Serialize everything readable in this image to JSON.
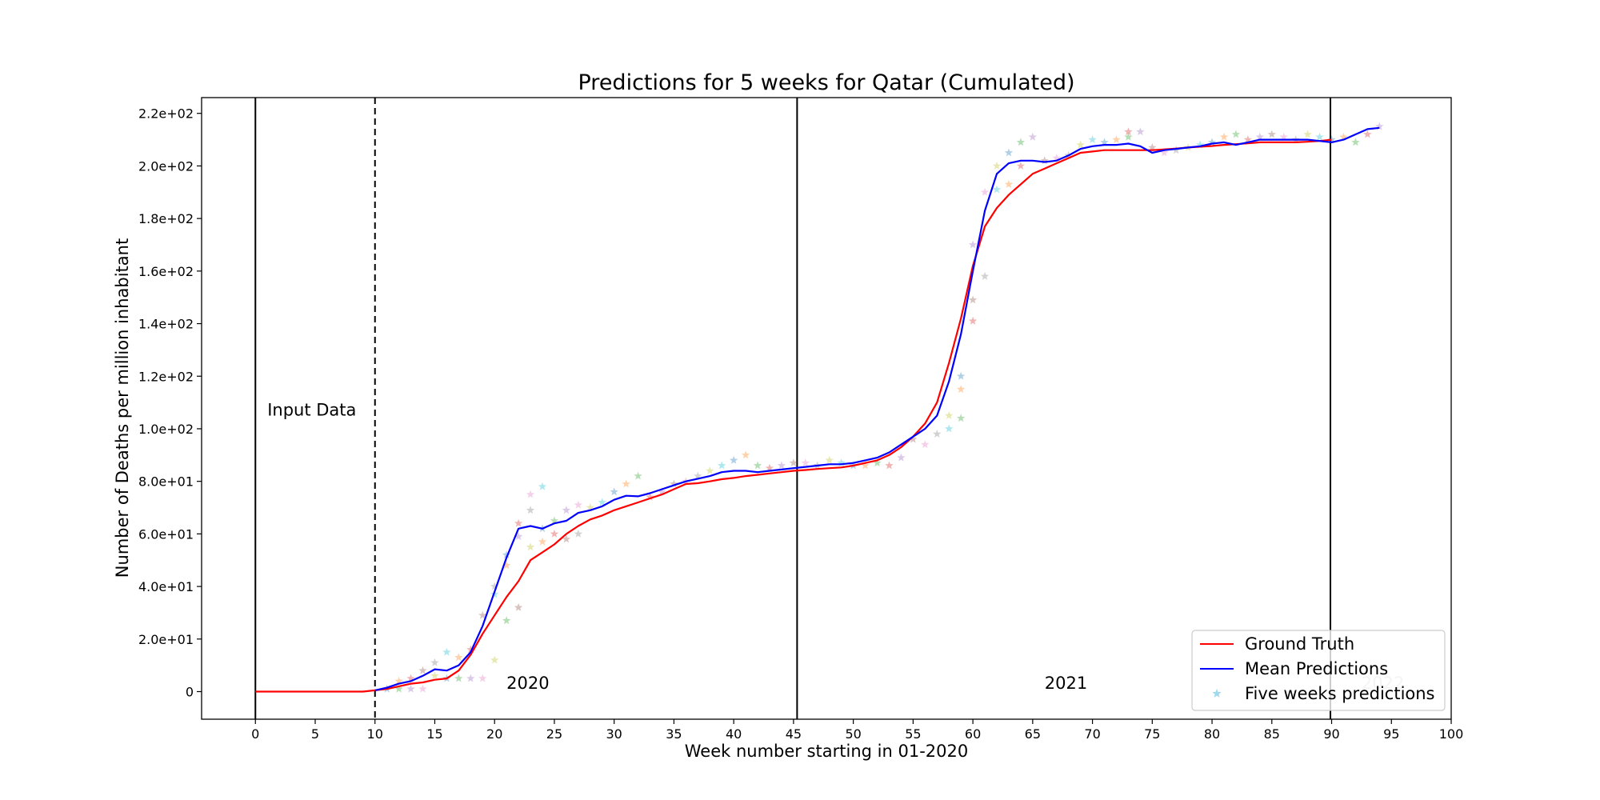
{
  "chart_data": {
    "type": "line",
    "title": "Predictions for 5 weeks for Qatar (Cumulated)",
    "xlabel": "Week number starting in 01-2020",
    "ylabel": "Number of Deaths per million inhabitant",
    "xlim": [
      -4.5,
      100
    ],
    "ylim": [
      -10.5,
      226
    ],
    "x_ticks": [
      0,
      5,
      10,
      15,
      20,
      25,
      30,
      35,
      40,
      45,
      50,
      55,
      60,
      65,
      70,
      75,
      80,
      85,
      90,
      95,
      100
    ],
    "y_ticks": [
      {
        "value": 0,
        "label": "0"
      },
      {
        "value": 20,
        "label": "2.0e+01"
      },
      {
        "value": 40,
        "label": "4.0e+01"
      },
      {
        "value": 60,
        "label": "6.0e+01"
      },
      {
        "value": 80,
        "label": "8.0e+01"
      },
      {
        "value": 100,
        "label": "1.0e+02"
      },
      {
        "value": 120,
        "label": "1.2e+02"
      },
      {
        "value": 140,
        "label": "1.4e+02"
      },
      {
        "value": 160,
        "label": "1.6e+02"
      },
      {
        "value": 180,
        "label": "1.8e+02"
      },
      {
        "value": 200,
        "label": "2.0e+02"
      },
      {
        "value": 220,
        "label": "2.2e+02"
      }
    ],
    "grid": false,
    "legend_position": "bottom-right",
    "vertical_lines": [
      {
        "x": 0,
        "style": "solid"
      },
      {
        "x": 10,
        "style": "dashed"
      },
      {
        "x": 45.3,
        "style": "solid"
      },
      {
        "x": 89.9,
        "style": "solid"
      }
    ],
    "annotations": [
      {
        "text": "Input Data",
        "x": 1,
        "y": 105,
        "color": "#000000"
      },
      {
        "text": "2020",
        "x": 21,
        "y": 1,
        "color": "#000000"
      },
      {
        "text": "2021",
        "x": 66,
        "y": 1,
        "color": "#000000"
      },
      {
        "text": "2022",
        "x": 92.5,
        "y": 1,
        "color": "#c8c8c8"
      }
    ],
    "series": [
      {
        "name": "Ground Truth",
        "kind": "line",
        "color": "#ff0000",
        "x": [
          0,
          1,
          2,
          3,
          4,
          5,
          6,
          7,
          8,
          9,
          10,
          11,
          12,
          13,
          14,
          15,
          16,
          17,
          18,
          19,
          20,
          21,
          22,
          23,
          24,
          25,
          26,
          27,
          28,
          29,
          30,
          31,
          32,
          33,
          34,
          35,
          36,
          37,
          38,
          39,
          40,
          41,
          42,
          43,
          44,
          45,
          46,
          47,
          48,
          49,
          50,
          51,
          52,
          53,
          54,
          55,
          56,
          57,
          58,
          59,
          60,
          61,
          62,
          63,
          64,
          65,
          66,
          67,
          68,
          69,
          70,
          71,
          72,
          73,
          74,
          75,
          76,
          77,
          78,
          79,
          80,
          81,
          82,
          83,
          84,
          85,
          86,
          87,
          88,
          89,
          90
        ],
        "values": [
          0,
          0,
          0,
          0,
          0,
          0,
          0,
          0,
          0,
          0,
          0.5,
          1,
          2,
          3,
          3.5,
          4.5,
          5,
          8,
          14,
          22,
          29,
          36,
          42,
          50,
          53,
          56,
          60,
          63,
          65.5,
          67,
          69,
          70.5,
          72,
          73.5,
          75,
          77,
          79,
          79.3,
          80,
          80.8,
          81.3,
          82,
          82.5,
          83,
          83.5,
          84,
          84.3,
          84.7,
          85,
          85.3,
          86,
          87,
          88,
          90,
          93,
          97,
          102,
          110,
          125,
          142,
          162,
          177,
          184,
          189,
          193,
          197,
          199,
          201,
          203,
          205,
          205.5,
          206,
          206,
          206,
          206,
          206,
          206.3,
          206.6,
          207,
          207.3,
          207.6,
          208,
          208.3,
          208.6,
          209,
          209,
          209,
          209,
          209.2,
          209.5,
          210
        ]
      },
      {
        "name": "Mean Predictions",
        "kind": "line",
        "color": "#0000ff",
        "x": [
          10,
          11,
          12,
          13,
          14,
          15,
          16,
          17,
          18,
          19,
          20,
          21,
          22,
          23,
          24,
          25,
          26,
          27,
          28,
          29,
          30,
          31,
          32,
          33,
          34,
          35,
          36,
          37,
          38,
          39,
          40,
          41,
          42,
          43,
          44,
          45,
          46,
          47,
          48,
          49,
          50,
          51,
          52,
          53,
          54,
          55,
          56,
          57,
          58,
          59,
          60,
          61,
          62,
          63,
          64,
          65,
          66,
          67,
          68,
          69,
          70,
          71,
          72,
          73,
          74,
          75,
          76,
          77,
          78,
          79,
          80,
          81,
          82,
          83,
          84,
          85,
          86,
          87,
          88,
          89,
          90,
          91,
          92,
          93,
          94
        ],
        "values": [
          0.5,
          1.5,
          3,
          4,
          6,
          8.5,
          8,
          10,
          15,
          25,
          38,
          51,
          62,
          63,
          62,
          64,
          65,
          68,
          69,
          70.5,
          73,
          74.5,
          74.3,
          75.5,
          77,
          78.5,
          80,
          81,
          82,
          83.5,
          84,
          84,
          83.5,
          84,
          84.5,
          85,
          85.5,
          86,
          86.5,
          86.5,
          87,
          88,
          89,
          91,
          94,
          97,
          100,
          105,
          118,
          136,
          160,
          183,
          197,
          201,
          202,
          202,
          201.5,
          202,
          204,
          206.5,
          207.5,
          208,
          208,
          208.5,
          207.5,
          205,
          206,
          206.5,
          207,
          207.5,
          208.5,
          209,
          208,
          209,
          210,
          210,
          210,
          210,
          210,
          209.5,
          209,
          210,
          212,
          214,
          214.5
        ]
      },
      {
        "name": "Five weeks predictions",
        "kind": "scatter",
        "marker": "star",
        "color": "#87ceeb",
        "palette": [
          "#1f77b4",
          "#ff7f0e",
          "#2ca02c",
          "#d62728",
          "#9467bd",
          "#8c564b",
          "#e377c2",
          "#7f7f7f",
          "#bcbd22",
          "#17becf"
        ],
        "x": [
          11,
          12,
          12,
          13,
          13,
          14,
          14,
          15,
          15,
          16,
          16,
          17,
          17,
          18,
          18,
          19,
          19,
          20,
          20,
          20,
          21,
          21,
          21,
          22,
          22,
          22,
          23,
          23,
          23,
          24,
          24,
          24,
          25,
          25,
          26,
          26,
          27,
          27,
          28,
          29,
          30,
          31,
          32,
          33,
          34,
          35,
          36,
          37,
          38,
          39,
          40,
          41,
          42,
          43,
          44,
          45,
          46,
          47,
          48,
          49,
          50,
          51,
          52,
          53,
          54,
          55,
          56,
          57,
          58,
          58,
          59,
          59,
          59,
          60,
          60,
          60,
          61,
          61,
          62,
          62,
          63,
          63,
          64,
          64,
          65,
          66,
          67,
          68,
          69,
          70,
          71,
          72,
          73,
          73,
          74,
          75,
          76,
          77,
          78,
          79,
          80,
          81,
          82,
          83,
          84,
          85,
          86,
          87,
          88,
          89,
          90,
          91,
          92,
          93,
          94
        ],
        "values": [
          1,
          4,
          1,
          5,
          1,
          8,
          1,
          11,
          6,
          15,
          5,
          13,
          5,
          16,
          5,
          29,
          5,
          40,
          12,
          37,
          52,
          48,
          27,
          64,
          59,
          32,
          75,
          69,
          55,
          78,
          62,
          57,
          65,
          60,
          69,
          58,
          71,
          60,
          70,
          72,
          76,
          79,
          82,
          74,
          76,
          79,
          80,
          82,
          84,
          86,
          88,
          90,
          86,
          85,
          86,
          87,
          87,
          86,
          88,
          87,
          86,
          86,
          87,
          86,
          89,
          96,
          94,
          98,
          105,
          100,
          120,
          115,
          104,
          141,
          170,
          149,
          190,
          158,
          200,
          191,
          205,
          193,
          209,
          200,
          211,
          202,
          203,
          204,
          208,
          210,
          209,
          210,
          211,
          213,
          213,
          207,
          205,
          206,
          207,
          208,
          209,
          211,
          212,
          210,
          211,
          212,
          211,
          210,
          212,
          211,
          210,
          211,
          209,
          212,
          215
        ]
      }
    ]
  }
}
